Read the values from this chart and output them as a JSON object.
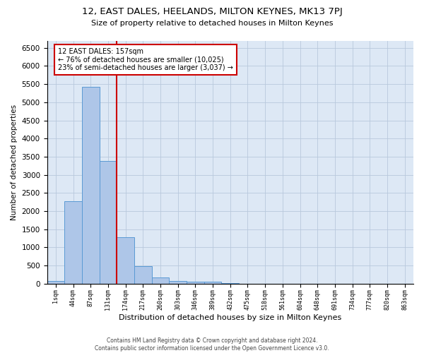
{
  "title": "12, EAST DALES, HEELANDS, MILTON KEYNES, MK13 7PJ",
  "subtitle": "Size of property relative to detached houses in Milton Keynes",
  "xlabel": "Distribution of detached houses by size in Milton Keynes",
  "ylabel": "Number of detached properties",
  "footer_line1": "Contains HM Land Registry data © Crown copyright and database right 2024.",
  "footer_line2": "Contains public sector information licensed under the Open Government Licence v3.0.",
  "annotation_line1": "12 EAST DALES: 157sqm",
  "annotation_line2": "← 76% of detached houses are smaller (10,025)",
  "annotation_line3": "23% of semi-detached houses are larger (3,037) →",
  "bar_labels": [
    "1sqm",
    "44sqm",
    "87sqm",
    "131sqm",
    "174sqm",
    "217sqm",
    "260sqm",
    "303sqm",
    "346sqm",
    "389sqm",
    "432sqm",
    "475sqm",
    "518sqm",
    "561sqm",
    "604sqm",
    "648sqm",
    "691sqm",
    "734sqm",
    "777sqm",
    "820sqm",
    "863sqm"
  ],
  "bar_values": [
    75,
    2270,
    5430,
    3390,
    1290,
    480,
    165,
    80,
    60,
    45,
    10,
    5,
    5,
    0,
    0,
    0,
    0,
    0,
    0,
    0,
    0
  ],
  "bar_color": "#aec6e8",
  "bar_edge_color": "#5a9ad4",
  "bg_color": "#dde8f5",
  "grid_color": "#b8c8dc",
  "marker_line_color": "#cc0000",
  "annotation_box_color": "#cc0000",
  "ylim": [
    0,
    6700
  ],
  "yticks": [
    0,
    500,
    1000,
    1500,
    2000,
    2500,
    3000,
    3500,
    4000,
    4500,
    5000,
    5500,
    6000,
    6500
  ]
}
